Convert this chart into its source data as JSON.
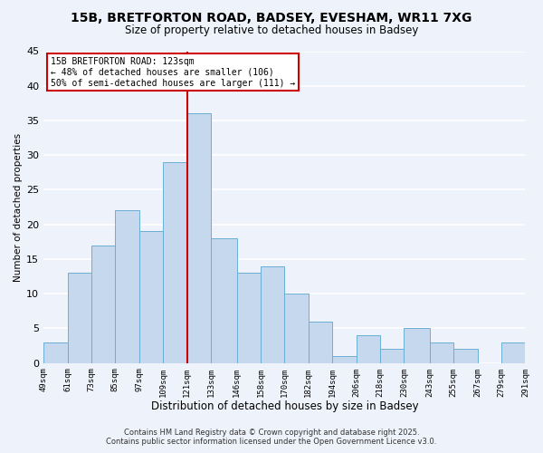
{
  "title_line1": "15B, BRETFORTON ROAD, BADSEY, EVESHAM, WR11 7XG",
  "title_line2": "Size of property relative to detached houses in Badsey",
  "xlabel": "Distribution of detached houses by size in Badsey",
  "ylabel": "Number of detached properties",
  "bar_color": "#c5d8ed",
  "bar_edge_color": "#6baed6",
  "vline_color": "#cc0000",
  "vline_x": 121,
  "bin_edges": [
    49,
    61,
    73,
    85,
    97,
    109,
    121,
    133,
    146,
    158,
    170,
    182,
    194,
    206,
    218,
    230,
    243,
    255,
    267,
    279,
    291
  ],
  "bar_heights": [
    3,
    13,
    17,
    22,
    19,
    29,
    36,
    18,
    13,
    14,
    10,
    6,
    1,
    4,
    2,
    5,
    3,
    2,
    0,
    3
  ],
  "tick_labels": [
    "49sqm",
    "61sqm",
    "73sqm",
    "85sqm",
    "97sqm",
    "109sqm",
    "121sqm",
    "133sqm",
    "146sqm",
    "158sqm",
    "170sqm",
    "182sqm",
    "194sqm",
    "206sqm",
    "218sqm",
    "230sqm",
    "243sqm",
    "255sqm",
    "267sqm",
    "279sqm",
    "291sqm"
  ],
  "ylim": [
    0,
    45
  ],
  "yticks": [
    0,
    5,
    10,
    15,
    20,
    25,
    30,
    35,
    40,
    45
  ],
  "annotation_title": "15B BRETFORTON ROAD: 123sqm",
  "annotation_line1": "← 48% of detached houses are smaller (106)",
  "annotation_line2": "50% of semi-detached houses are larger (111) →",
  "footer1": "Contains HM Land Registry data © Crown copyright and database right 2025.",
  "footer2": "Contains public sector information licensed under the Open Government Licence v3.0.",
  "bg_color": "#eef2fb",
  "grid_color": "#ffffff",
  "annotation_box_facecolor": "#ffffff",
  "annotation_box_edgecolor": "#cc0000"
}
